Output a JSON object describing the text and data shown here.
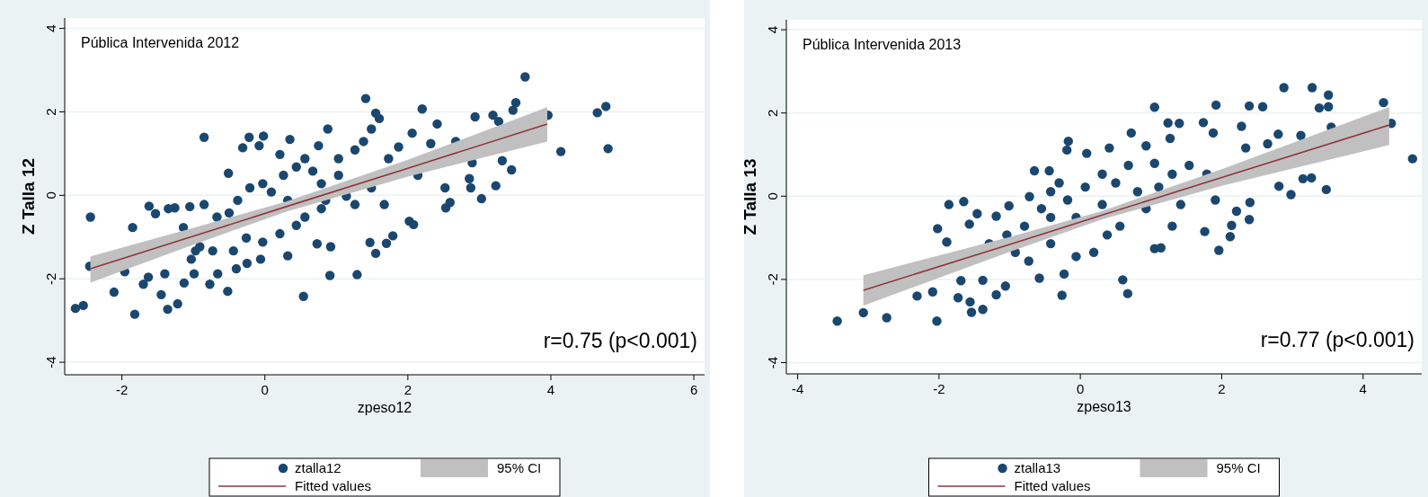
{
  "chart_data": [
    {
      "type": "scatter",
      "xlabel": "zpeso12",
      "ylabel": "Z Talla 12",
      "annotations": [
        "Pública Intervenida 2012",
        "r=0.75 (p<0.001)",
        "95% CI"
      ],
      "xlim": [
        -2.8,
        6.15
      ],
      "ylim": [
        -4.3,
        4.25
      ],
      "xticks": [
        -2,
        0,
        2,
        4,
        6
      ],
      "yticks": [
        -4,
        -2,
        0,
        2,
        4
      ],
      "grid": "y",
      "legend": "bottom",
      "series": [
        {
          "name": "ztalla12",
          "marker": "circle",
          "color": "#1a476f",
          "x": [
            -2.65,
            -2.54,
            -2.44,
            -2.45,
            -2.11,
            -1.82,
            -1.96,
            -1.85,
            -1.62,
            -1.7,
            -1.63,
            -1.45,
            -1.36,
            -1.22,
            -1.4,
            -1.53,
            -1.35,
            -1.26,
            -1.05,
            -0.85,
            -0.85,
            -1.13,
            -0.99,
            -0.77,
            -0.52,
            -0.97,
            -1.14,
            -0.67,
            -0.66,
            -0.4,
            -0.51,
            -0.31,
            -0.22,
            -0.08,
            -0.02,
            0.35,
            0.21,
            0.54,
            -0.25,
            -0.06,
            0.32,
            0.88,
            0.75,
            0.91,
            1.29,
            0.92,
            0.73,
            1.41,
            1.55,
            1.6,
            1.49,
            1.38,
            1.55,
            1.47,
            1.7,
            1.79,
            1.87,
            2.02,
            2.08,
            2.06,
            2.2,
            2.32,
            2.41,
            2.52,
            2.53,
            2.59,
            2.86,
            2.88,
            3.03,
            2.94,
            3.19,
            3.23,
            3.27,
            3.32,
            3.45,
            3.47,
            3.51,
            3.64,
            3.96,
            4.14,
            4.65,
            4.77,
            4.8,
            -0.5,
            -0.38,
            -0.21,
            -0.03,
            0.09,
            0.26,
            0.44,
            0.56,
            0.67,
            0.79,
            1.03,
            1.14,
            1.26,
            0.56,
            0.44,
            0.21,
            -0.03,
            -0.26,
            -0.44,
            -0.73,
            -0.91,
            -1.03,
            0.32,
            0.85,
            1.49,
            1.67,
            1.73,
            1.26,
            1.03,
            0.79,
            2.67,
            2.9,
            2.14
          ],
          "values": [
            -2.71,
            -2.64,
            -0.52,
            -1.7,
            -2.32,
            -2.85,
            -1.83,
            -0.77,
            -0.26,
            -2.13,
            -1.96,
            -2.38,
            -2.73,
            -2.6,
            -1.88,
            -0.44,
            -0.32,
            -0.3,
            -0.27,
            1.39,
            -0.22,
            -2.1,
            -1.88,
            -2.13,
            -2.3,
            -1.33,
            -0.77,
            -0.52,
            -1.88,
            -1.76,
            0.53,
            1.14,
            1.39,
            1.19,
            1.42,
            1.34,
            0.98,
            -2.42,
            -1.63,
            -1.53,
            -1.45,
            1.59,
            1.19,
            -1.92,
            -1.9,
            -1.23,
            -1.16,
            2.32,
            1.97,
            1.84,
            1.59,
            1.29,
            -1.39,
            -1.13,
            -1.15,
            -0.97,
            1.16,
            -0.62,
            -0.7,
            1.49,
            2.07,
            1.24,
            1.71,
            0.18,
            -0.3,
            -0.17,
            0.4,
            0.18,
            -0.08,
            1.88,
            1.92,
            0.23,
            1.77,
            0.83,
            0.61,
            2.04,
            2.22,
            2.84,
            1.92,
            1.05,
            1.98,
            2.13,
            1.12,
            -0.42,
            -0.12,
            0.18,
            0.28,
            0.08,
            0.48,
            0.68,
            0.88,
            0.58,
            0.28,
            0.48,
            -0.02,
            -0.22,
            -0.52,
            -0.72,
            -0.92,
            -1.12,
            -1.02,
            -1.33,
            -1.33,
            -1.23,
            -1.53,
            -0.12,
            -0.12,
            0.18,
            -0.22,
            0.88,
            1.09,
            0.88,
            -0.32,
            1.29,
            0.78,
            0.48
          ]
        },
        {
          "name": "Fitted values",
          "type": "line",
          "color": "#90353b",
          "x": [
            -2.44,
            -1,
            0.3,
            2,
            3.95
          ],
          "values": [
            -1.76,
            -0.98,
            -0.27,
            0.65,
            1.71
          ],
          "lower": [
            -2.09,
            -1.18,
            -0.39,
            0.45,
            1.29
          ],
          "upper": [
            -1.46,
            -0.78,
            -0.15,
            0.85,
            2.11
          ]
        }
      ]
    },
    {
      "type": "scatter",
      "xlabel": "zpeso13",
      "ylabel": "Z Talla 13",
      "annotations": [
        "Pública Intervenida 2013",
        "r=0.77 (p<0.001)",
        "95% CI"
      ],
      "xlim": [
        -4.16,
        4.83
      ],
      "ylim": [
        -4.27,
        4.24
      ],
      "xticks": [
        -4,
        -2,
        0,
        2,
        4
      ],
      "yticks": [
        -4,
        -2,
        0,
        2,
        4
      ],
      "grid": "y",
      "legend": "bottom",
      "series": [
        {
          "name": "ztalla13",
          "marker": "circle",
          "color": "#1a476f",
          "x": [
            -3.44,
            -3.07,
            -2.74,
            -2.03,
            -2.31,
            -2.09,
            -2.02,
            -1.89,
            -1.86,
            -1.65,
            -1.73,
            -1.69,
            -1.56,
            -1.54,
            -1.38,
            -1.38,
            -1.46,
            -1.57,
            -1.19,
            -1.19,
            -1.06,
            -1.01,
            -0.72,
            -0.65,
            -0.44,
            -0.58,
            -0.26,
            -0.23,
            -0.17,
            -0.19,
            0.09,
            0.41,
            0.6,
            0.67,
            0.72,
            0.93,
            1.05,
            1.05,
            1.05,
            1.14,
            1.24,
            1.27,
            1.4,
            1.74,
            1.88,
            1.92,
            1.96,
            1.76,
            2.12,
            2.14,
            2.21,
            2.4,
            2.39,
            2.28,
            2.39,
            2.58,
            2.8,
            2.81,
            2.98,
            2.88,
            3.12,
            3.15,
            3.27,
            3.28,
            3.38,
            3.51,
            3.51,
            3.48,
            3.55,
            4.29,
            4.4,
            4.7,
            -1.04,
            -0.79,
            -0.55,
            -0.42,
            -0.3,
            -0.18,
            -0.06,
            0.07,
            0.31,
            0.5,
            0.68,
            0.81,
            0.93,
            1.11,
            1.3,
            1.42,
            1.54,
            1.79,
            1.91,
            2.34,
            2.65,
            -0.06,
            0.19,
            -0.42,
            -0.73,
            -0.92,
            -1.29,
            0.38,
            0.56,
            1.3,
            -0.42,
            0.31
          ],
          "values": [
            -3.0,
            -2.8,
            -2.92,
            -3.0,
            -2.4,
            -2.3,
            -0.78,
            -1.1,
            -0.2,
            -0.13,
            -2.44,
            -2.03,
            -2.54,
            -2.79,
            -2.72,
            -2.02,
            -0.42,
            -0.67,
            -0.48,
            -2.37,
            -2.16,
            -0.23,
            -0.01,
            0.61,
            0.61,
            -1.97,
            -2.38,
            -1.87,
            1.32,
            1.11,
            1.03,
            1.16,
            -2.01,
            -2.34,
            1.52,
            1.21,
            2.14,
            0.79,
            -1.26,
            -1.24,
            1.76,
            1.39,
            1.75,
            1.77,
            1.52,
            2.19,
            -1.3,
            -0.85,
            -0.97,
            -0.7,
            -0.36,
            -0.15,
            -0.56,
            1.68,
            2.17,
            2.15,
            1.49,
            0.24,
            0.04,
            2.61,
            1.46,
            0.42,
            0.44,
            2.61,
            2.12,
            2.43,
            2.15,
            0.16,
            1.66,
            2.25,
            1.75,
            0.9,
            -0.93,
            -0.72,
            -0.3,
            0.11,
            0.32,
            -0.09,
            -0.51,
            0.22,
            0.53,
            0.32,
            0.74,
            0.11,
            -0.3,
            0.22,
            0.53,
            -0.2,
            0.74,
            0.53,
            -0.09,
            1.16,
            1.26,
            -1.45,
            -1.35,
            -1.14,
            -1.56,
            -1.35,
            -1.14,
            -0.93,
            -0.72,
            -0.72,
            -0.51,
            -0.2
          ]
        },
        {
          "name": "Fitted values",
          "type": "line",
          "color": "#90353b",
          "x": [
            -3.07,
            -1,
            0.3,
            2,
            4.37
          ],
          "values": [
            -2.26,
            -1.16,
            -0.46,
            0.45,
            1.71
          ],
          "lower": [
            -2.63,
            -1.34,
            -0.56,
            0.25,
            1.23
          ],
          "upper": [
            -1.9,
            -0.98,
            -0.36,
            0.65,
            2.14
          ]
        }
      ]
    }
  ]
}
